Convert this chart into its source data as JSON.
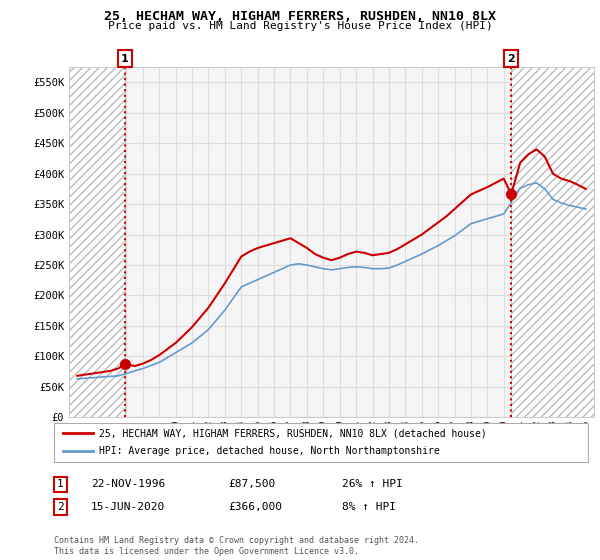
{
  "title": "25, HECHAM WAY, HIGHAM FERRERS, RUSHDEN, NN10 8LX",
  "subtitle": "Price paid vs. HM Land Registry's House Price Index (HPI)",
  "legend_line1": "25, HECHAM WAY, HIGHAM FERRERS, RUSHDEN, NN10 8LX (detached house)",
  "legend_line2": "HPI: Average price, detached house, North Northamptonshire",
  "sale1_date": "22-NOV-1996",
  "sale1_price": "£87,500",
  "sale1_hpi": "26% ↑ HPI",
  "sale1_year": 1996.9,
  "sale1_price_val": 87500,
  "sale2_date": "15-JUN-2020",
  "sale2_price": "£366,000",
  "sale2_hpi": "8% ↑ HPI",
  "sale2_year": 2020.45,
  "sale2_price_val": 366000,
  "ylim": [
    0,
    575000
  ],
  "xlim": [
    1993.5,
    2025.5
  ],
  "yticks": [
    0,
    50000,
    100000,
    150000,
    200000,
    250000,
    300000,
    350000,
    400000,
    450000,
    500000,
    550000
  ],
  "ytick_labels": [
    "£0",
    "£50K",
    "£100K",
    "£150K",
    "£200K",
    "£250K",
    "£300K",
    "£350K",
    "£400K",
    "£450K",
    "£500K",
    "£550K"
  ],
  "red_color": "#cc0000",
  "blue_color": "#6699cc",
  "grid_color": "#dddddd",
  "footer": "Contains HM Land Registry data © Crown copyright and database right 2024.\nThis data is licensed under the Open Government Licence v3.0.",
  "background_color": "#ffffff",
  "plot_bg_color": "#f5f5f5",
  "years_hpi": [
    1994,
    1994.5,
    1995,
    1995.5,
    1996,
    1996.5,
    1997,
    1997.5,
    1998,
    1998.5,
    1999,
    1999.5,
    2000,
    2000.5,
    2001,
    2001.5,
    2002,
    2002.5,
    2003,
    2003.5,
    2004,
    2004.5,
    2005,
    2005.5,
    2006,
    2006.5,
    2007,
    2007.5,
    2008,
    2008.5,
    2009,
    2009.5,
    2010,
    2010.5,
    2011,
    2011.5,
    2012,
    2012.5,
    2013,
    2013.5,
    2014,
    2014.5,
    2015,
    2015.5,
    2016,
    2016.5,
    2017,
    2017.5,
    2018,
    2018.5,
    2019,
    2019.5,
    2020,
    2020.5,
    2021,
    2021.5,
    2022,
    2022.5,
    2023,
    2023.5,
    2024,
    2024.5,
    2025
  ],
  "hpi_values": [
    63000,
    64000,
    65000,
    66000,
    67000,
    68000,
    72000,
    76000,
    80000,
    85000,
    90000,
    98000,
    106000,
    114000,
    122000,
    133000,
    144000,
    160000,
    176000,
    195000,
    214000,
    220000,
    226000,
    232000,
    238000,
    244000,
    250000,
    252000,
    250000,
    247000,
    244000,
    242000,
    244000,
    246000,
    247000,
    246000,
    244000,
    244000,
    245000,
    250000,
    256000,
    262000,
    268000,
    275000,
    282000,
    290000,
    298000,
    308000,
    318000,
    322000,
    326000,
    330000,
    334000,
    355000,
    376000,
    382000,
    385000,
    375000,
    358000,
    352000,
    348000,
    345000,
    342000
  ],
  "years_price": [
    1994,
    1994.5,
    1995,
    1995.5,
    1996,
    1996.5,
    1996.9,
    1997.5,
    1998,
    1998.5,
    1999,
    1999.5,
    2000,
    2000.5,
    2001,
    2001.5,
    2002,
    2002.5,
    2003,
    2003.5,
    2004,
    2004.5,
    2005,
    2005.5,
    2006,
    2006.5,
    2007,
    2007.5,
    2008,
    2008.5,
    2009,
    2009.5,
    2010,
    2010.5,
    2011,
    2011.5,
    2012,
    2012.5,
    2013,
    2013.5,
    2014,
    2014.5,
    2015,
    2015.5,
    2016,
    2016.5,
    2017,
    2017.5,
    2018,
    2018.5,
    2019,
    2019.5,
    2020,
    2020.45,
    2021,
    2021.5,
    2022,
    2022.5,
    2023,
    2023.5,
    2024,
    2024.5,
    2025
  ],
  "price_values": [
    68000,
    70000,
    72000,
    74000,
    76000,
    80000,
    87500,
    84000,
    88000,
    94000,
    102000,
    112000,
    122000,
    135000,
    148000,
    164000,
    180000,
    200000,
    220000,
    242000,
    264000,
    272000,
    278000,
    282000,
    286000,
    290000,
    294000,
    286000,
    278000,
    268000,
    262000,
    258000,
    262000,
    268000,
    272000,
    270000,
    266000,
    268000,
    270000,
    276000,
    284000,
    292000,
    300000,
    310000,
    320000,
    330000,
    342000,
    354000,
    366000,
    372000,
    378000,
    385000,
    392000,
    366000,
    418000,
    432000,
    440000,
    428000,
    400000,
    392000,
    388000,
    382000,
    375000
  ]
}
